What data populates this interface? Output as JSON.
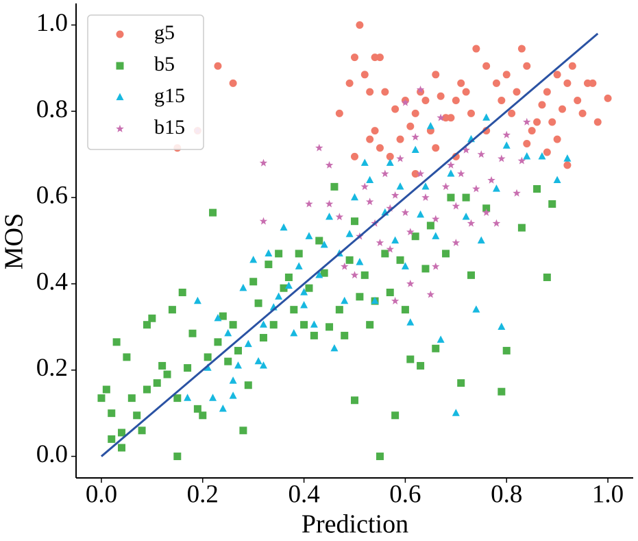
{
  "chart_data": {
    "type": "scatter",
    "xlabel": "Prediction",
    "ylabel": "MOS",
    "xlim": [
      -0.05,
      1.05
    ],
    "ylim": [
      -0.05,
      1.05
    ],
    "xticks": [
      {
        "value": 0,
        "label": "0.0"
      },
      0.2,
      0.4,
      0.6,
      0.8,
      {
        "value": 1,
        "label": "1.0"
      }
    ],
    "yticks": [
      {
        "value": 0,
        "label": "0.0"
      },
      0.2,
      0.4,
      0.6,
      0.8,
      {
        "value": 1,
        "label": "1.0"
      }
    ],
    "legend": "upper left",
    "series": [
      {
        "name": "g5",
        "color": "#f07a6a",
        "marker": "circle",
        "x": [
          0.51,
          0.23,
          0.26,
          0.15,
          0.19,
          0.47,
          0.49,
          0.5,
          0.54,
          0.55,
          0.52,
          0.53,
          0.56,
          0.54,
          0.53,
          0.5,
          0.55,
          0.58,
          0.6,
          0.62,
          0.64,
          0.66,
          0.65,
          0.68,
          0.7,
          0.72,
          0.73,
          0.74,
          0.76,
          0.78,
          0.8,
          0.82,
          0.83,
          0.84,
          0.86,
          0.88,
          0.9,
          0.92,
          0.93,
          0.94,
          0.95,
          0.96,
          0.97,
          0.98,
          1.0,
          0.9,
          0.92,
          0.88,
          0.85,
          0.81,
          0.76,
          0.7,
          0.66,
          0.62,
          0.61,
          0.57,
          0.59,
          0.63,
          0.71,
          0.79,
          0.87,
          0.91,
          0.89,
          0.84,
          0.67,
          0.69
        ],
        "values": [
          1.0,
          0.905,
          0.865,
          0.715,
          0.755,
          0.795,
          0.865,
          0.925,
          0.925,
          0.925,
          0.885,
          0.845,
          0.845,
          0.755,
          0.735,
          0.695,
          0.715,
          0.805,
          0.825,
          0.795,
          0.825,
          0.885,
          0.755,
          0.785,
          0.825,
          0.845,
          0.795,
          0.945,
          0.905,
          0.865,
          0.885,
          0.845,
          0.945,
          0.905,
          0.775,
          0.845,
          0.885,
          0.865,
          0.905,
          0.825,
          0.795,
          0.865,
          0.865,
          0.775,
          0.83,
          0.735,
          0.675,
          0.705,
          0.755,
          0.795,
          0.755,
          0.695,
          0.715,
          0.655,
          0.765,
          0.695,
          0.735,
          0.845,
          0.865,
          0.825,
          0.815,
          0.805,
          0.775,
          0.725,
          0.835,
          0.785
        ]
      },
      {
        "name": "b5",
        "color": "#4daf4a",
        "marker": "square",
        "x": [
          0.0,
          0.01,
          0.02,
          0.02,
          0.03,
          0.04,
          0.04,
          0.05,
          0.06,
          0.07,
          0.08,
          0.09,
          0.09,
          0.1,
          0.11,
          0.12,
          0.13,
          0.14,
          0.15,
          0.15,
          0.16,
          0.17,
          0.18,
          0.19,
          0.2,
          0.21,
          0.22,
          0.23,
          0.24,
          0.25,
          0.26,
          0.27,
          0.28,
          0.29,
          0.3,
          0.31,
          0.32,
          0.33,
          0.34,
          0.35,
          0.36,
          0.37,
          0.38,
          0.39,
          0.4,
          0.41,
          0.42,
          0.43,
          0.44,
          0.45,
          0.46,
          0.47,
          0.48,
          0.49,
          0.5,
          0.5,
          0.51,
          0.52,
          0.53,
          0.54,
          0.55,
          0.56,
          0.57,
          0.58,
          0.59,
          0.6,
          0.61,
          0.62,
          0.63,
          0.64,
          0.65,
          0.66,
          0.68,
          0.69,
          0.71,
          0.72,
          0.73,
          0.76,
          0.79,
          0.8,
          0.83,
          0.86,
          0.88,
          0.89
        ],
        "values": [
          0.135,
          0.155,
          0.04,
          0.1,
          0.265,
          0.055,
          0.02,
          0.23,
          0.135,
          0.095,
          0.06,
          0.155,
          0.305,
          0.32,
          0.17,
          0.21,
          0.19,
          0.34,
          0.135,
          0.0,
          0.38,
          0.205,
          0.285,
          0.11,
          0.095,
          0.23,
          0.565,
          0.265,
          0.325,
          0.22,
          0.305,
          0.245,
          0.06,
          0.165,
          0.405,
          0.355,
          0.275,
          0.445,
          0.305,
          0.47,
          0.39,
          0.415,
          0.34,
          0.47,
          0.305,
          0.39,
          0.28,
          0.5,
          0.425,
          0.3,
          0.625,
          0.34,
          0.28,
          0.455,
          0.13,
          0.545,
          0.37,
          0.42,
          0.305,
          0.36,
          0.0,
          0.47,
          0.38,
          0.095,
          0.455,
          0.34,
          0.225,
          0.51,
          0.21,
          0.435,
          0.535,
          0.25,
          0.47,
          0.6,
          0.17,
          0.6,
          0.42,
          0.575,
          0.15,
          0.245,
          0.53,
          0.62,
          0.415,
          0.585
        ]
      },
      {
        "name": "g15",
        "color": "#17b8e0",
        "marker": "triangle",
        "x": [
          0.17,
          0.19,
          0.21,
          0.22,
          0.23,
          0.24,
          0.25,
          0.26,
          0.27,
          0.28,
          0.29,
          0.3,
          0.31,
          0.32,
          0.33,
          0.34,
          0.35,
          0.36,
          0.37,
          0.38,
          0.39,
          0.4,
          0.41,
          0.42,
          0.43,
          0.44,
          0.45,
          0.46,
          0.47,
          0.48,
          0.49,
          0.5,
          0.51,
          0.52,
          0.53,
          0.54,
          0.56,
          0.57,
          0.58,
          0.59,
          0.6,
          0.61,
          0.62,
          0.63,
          0.64,
          0.65,
          0.66,
          0.67,
          0.69,
          0.7,
          0.72,
          0.73,
          0.74,
          0.75,
          0.76,
          0.78,
          0.79,
          0.8,
          0.84,
          0.87,
          0.9,
          0.92,
          0.26,
          0.32,
          0.4
        ],
        "values": [
          0.135,
          0.36,
          0.205,
          0.135,
          0.32,
          0.11,
          0.285,
          0.175,
          0.21,
          0.39,
          0.26,
          0.455,
          0.22,
          0.305,
          0.47,
          0.345,
          0.37,
          0.53,
          0.395,
          0.285,
          0.44,
          0.35,
          0.51,
          0.305,
          0.42,
          0.49,
          0.555,
          0.25,
          0.47,
          0.36,
          0.515,
          0.6,
          0.45,
          0.68,
          0.64,
          0.36,
          0.565,
          0.68,
          0.5,
          0.625,
          0.44,
          0.31,
          0.71,
          0.56,
          0.625,
          0.765,
          0.51,
          0.27,
          0.655,
          0.1,
          0.555,
          0.735,
          0.34,
          0.5,
          0.785,
          0.62,
          0.3,
          0.72,
          0.695,
          0.695,
          0.64,
          0.69,
          0.14,
          0.21,
          0.38
        ]
      },
      {
        "name": "b15",
        "color": "#c86eb0",
        "marker": "star",
        "x": [
          0.19,
          0.32,
          0.32,
          0.41,
          0.43,
          0.45,
          0.45,
          0.47,
          0.48,
          0.5,
          0.51,
          0.52,
          0.53,
          0.54,
          0.55,
          0.56,
          0.57,
          0.58,
          0.59,
          0.6,
          0.61,
          0.62,
          0.63,
          0.64,
          0.65,
          0.66,
          0.67,
          0.68,
          0.69,
          0.7,
          0.71,
          0.72,
          0.73,
          0.74,
          0.75,
          0.76,
          0.77,
          0.78,
          0.79,
          0.8,
          0.82,
          0.83,
          0.84,
          0.58,
          0.61,
          0.6,
          0.63,
          0.66,
          0.7,
          0.57
        ],
        "values": [
          0.755,
          0.545,
          0.68,
          0.585,
          0.715,
          0.675,
          0.585,
          0.555,
          0.44,
          0.42,
          0.51,
          0.625,
          0.59,
          0.54,
          0.495,
          0.655,
          0.575,
          0.605,
          0.69,
          0.565,
          0.52,
          0.74,
          0.655,
          0.6,
          0.375,
          0.55,
          0.785,
          0.625,
          0.675,
          0.58,
          0.655,
          0.71,
          0.54,
          0.62,
          0.7,
          0.565,
          0.64,
          0.54,
          0.69,
          0.745,
          0.61,
          0.685,
          0.775,
          0.36,
          0.4,
          0.82,
          0.85,
          0.44,
          0.495,
          0.48
        ]
      }
    ],
    "fit_line": {
      "color": "#2a52a3",
      "x": [
        0,
        0.98
      ],
      "values": [
        0,
        0.98
      ]
    }
  }
}
